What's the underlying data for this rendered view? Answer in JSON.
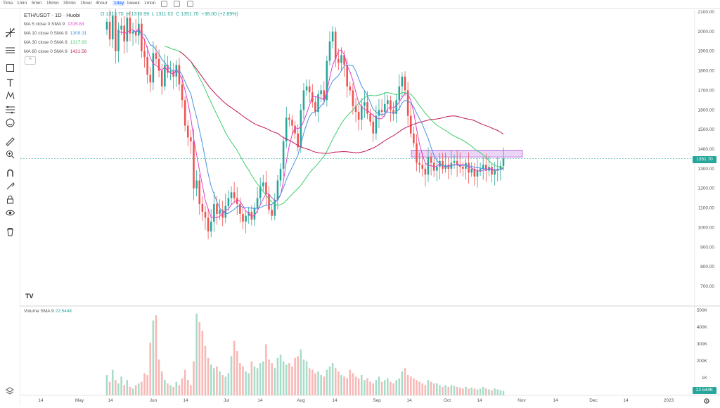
{
  "toolbar": {
    "timeframes": [
      "Time",
      "1min",
      "5min",
      "15min",
      "30min",
      "1hour",
      "4hour",
      "1day",
      "1week",
      "1mon"
    ],
    "active": "1day"
  },
  "header": {
    "symbol": "ETH/USDT · 1D · Huobi",
    "ohlc": {
      "o": "O 1313.70",
      "h": "H 1370.99",
      "l": "L 1311.02",
      "c": "C 1351.70",
      "chg": "+38.00 (+2.89%)"
    }
  },
  "indicators": [
    {
      "label": "MA 5 close 0 SMA 9",
      "value": "1315.83",
      "color": "#e040c8"
    },
    {
      "label": "MA 10 close 0 SMA 9",
      "value": "1309.31",
      "color": "#4a90e2"
    },
    {
      "label": "MA 30 close 0 SMA 9",
      "value": "1317.93",
      "color": "#3ccf6a"
    },
    {
      "label": "MA 60 close 0 SMA 9",
      "value": "1421.56",
      "color": "#c2185b"
    }
  ],
  "volume_label": {
    "name": "Volume SMA 9",
    "value": "22.544K"
  },
  "price_tag": "1351.70",
  "volume_tag": "22.544K",
  "logo": "TV",
  "colors": {
    "up": "#26a69a",
    "down": "#ef5350",
    "up_vol": "#a8dcc8",
    "down_vol": "#f7b8b6",
    "zone": "#e3c3f3",
    "zone_border": "#b15fd8"
  },
  "chart_data": {
    "type": "candlestick",
    "price_axis": {
      "ticks": [
        2100,
        2000,
        1900,
        1800,
        1700,
        1600,
        1500,
        1400,
        1300,
        1200,
        1100,
        1000,
        900,
        800,
        700
      ],
      "range": [
        620,
        2100
      ]
    },
    "volume_axis": {
      "ticks": [
        "500K",
        "400K",
        "300K",
        "200K",
        "1K"
      ],
      "range": [
        0,
        500
      ]
    },
    "x_ticks": [
      "14",
      "May",
      "14",
      "Jun",
      "14",
      "Jul",
      "14",
      "Aug",
      "14",
      "Sep",
      "14",
      "Oct",
      "14",
      "Nov",
      "14",
      "Dec",
      "14",
      "2023"
    ],
    "last_price": 1351.7,
    "zone": {
      "from": 1360,
      "to": 1395
    },
    "closes": [
      2050,
      1960,
      2080,
      1900,
      2010,
      2030,
      1950,
      2070,
      1990,
      2000,
      1980,
      2040,
      1900,
      1870,
      1780,
      1740,
      1890,
      1860,
      1800,
      1720,
      1830,
      1790,
      1800,
      1770,
      1830,
      1730,
      1650,
      1520,
      1460,
      1440,
      1200,
      1240,
      1120,
      1080,
      1050,
      980,
      1030,
      1120,
      1070,
      1090,
      1050,
      1110,
      1150,
      1180,
      1150,
      1120,
      1070,
      1030,
      1060,
      1080,
      1040,
      1100,
      1150,
      1210,
      1230,
      1170,
      1090,
      1060,
      1140,
      1240,
      1300,
      1440,
      1560,
      1550,
      1520,
      1480,
      1410,
      1600,
      1700,
      1720,
      1690,
      1640,
      1590,
      1680,
      1700,
      1650,
      1850,
      1950,
      2000,
      1860,
      1840,
      1880,
      1830,
      1720,
      1700,
      1620,
      1590,
      1550,
      1620,
      1640,
      1580,
      1540,
      1480,
      1570,
      1600,
      1590,
      1630,
      1650,
      1600,
      1580,
      1650,
      1720,
      1770,
      1700,
      1570,
      1480,
      1430,
      1330,
      1320,
      1300,
      1270,
      1360,
      1330,
      1290,
      1310,
      1340,
      1300,
      1320,
      1300,
      1330,
      1340,
      1320,
      1310,
      1300,
      1330,
      1280,
      1300,
      1260,
      1290,
      1300,
      1320,
      1290,
      1310,
      1270,
      1290,
      1300,
      1314,
      1352
    ],
    "volumes": [
      120,
      80,
      150,
      90,
      70,
      110,
      60,
      90,
      50,
      40,
      60,
      70,
      80,
      130,
      120,
      310,
      440,
      470,
      210,
      140,
      90,
      70,
      60,
      50,
      80,
      60,
      100,
      150,
      90,
      60,
      200,
      480,
      430,
      380,
      290,
      220,
      180,
      160,
      170,
      140,
      120,
      110,
      130,
      230,
      320,
      260,
      190,
      170,
      140,
      130,
      200,
      170,
      160,
      190,
      200,
      300,
      210,
      190,
      160,
      220,
      240,
      200,
      180,
      190,
      170,
      220,
      230,
      270,
      210,
      200,
      160,
      150,
      130,
      140,
      120,
      110,
      150,
      170,
      190,
      160,
      140,
      120,
      110,
      100,
      150,
      130,
      110,
      100,
      120,
      90,
      100,
      80,
      70,
      90,
      110,
      80,
      90,
      100,
      80,
      70,
      90,
      100,
      140,
      160,
      120,
      110,
      100,
      90,
      80,
      70,
      60,
      90,
      80,
      70,
      70,
      60,
      50,
      60,
      50,
      60,
      55,
      50,
      45,
      40,
      50,
      40,
      45,
      40,
      35,
      40,
      50,
      40,
      35,
      30,
      40,
      35,
      30,
      25
    ]
  }
}
